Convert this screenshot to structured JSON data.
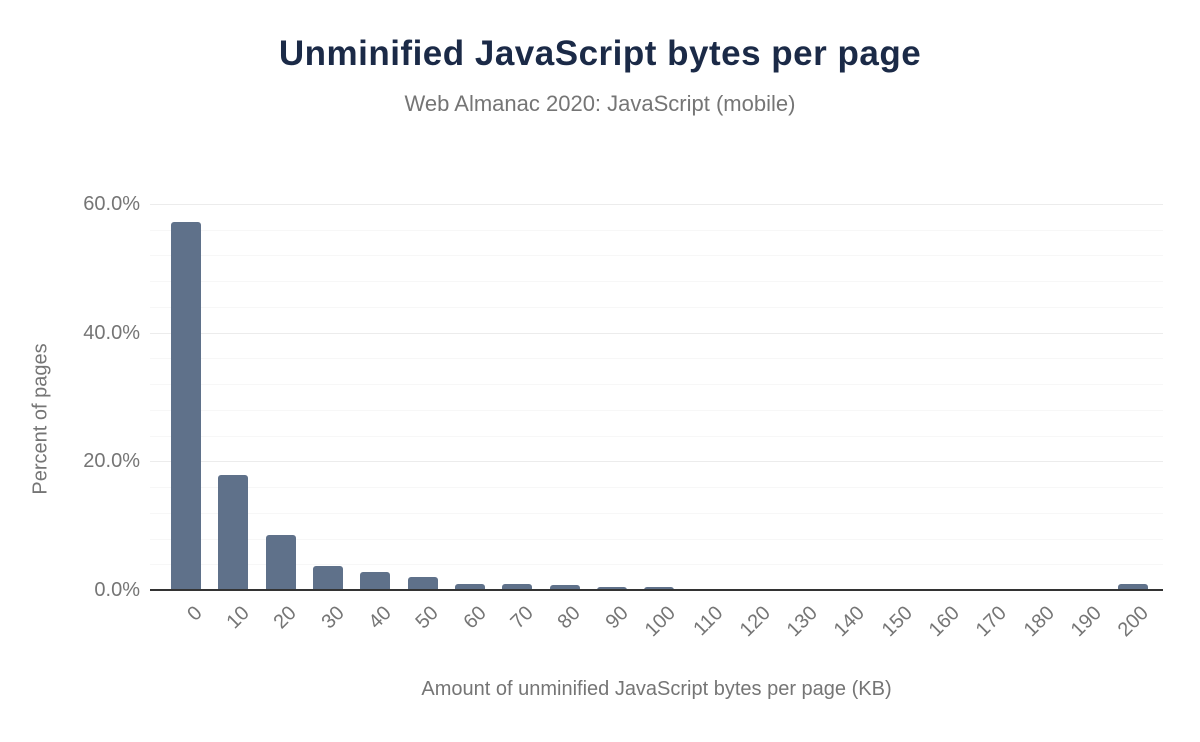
{
  "chart_data": {
    "type": "bar",
    "title": "Unminified JavaScript bytes per page",
    "subtitle": "Web Almanac 2020: JavaScript (mobile)",
    "xlabel": "Amount of unminified JavaScript bytes per page (KB)",
    "ylabel": "Percent of pages",
    "categories": [
      "0",
      "10",
      "20",
      "30",
      "40",
      "50",
      "60",
      "70",
      "80",
      "90",
      "100",
      "110",
      "120",
      "130",
      "140",
      "150",
      "160",
      "170",
      "180",
      "190",
      "200"
    ],
    "values": [
      57.2,
      17.8,
      8.5,
      3.8,
      2.8,
      2.0,
      1.0,
      1.0,
      0.8,
      0.5,
      0.5,
      0.2,
      0.2,
      0.2,
      0.15,
      0.15,
      0.15,
      0.15,
      0.15,
      0.1,
      0.9
    ],
    "ylim": [
      0,
      60
    ],
    "ytick_values": [
      0,
      20,
      40,
      60
    ],
    "ytick_labels": [
      "0.0%",
      "20.0%",
      "40.0%",
      "60.0%"
    ],
    "minor_grid_step": 4,
    "major_grid_step": 20,
    "grid": true,
    "legend": false,
    "colors": {
      "bar": "#5f718a",
      "title": "#1b2a47",
      "subtitle": "#757575",
      "axis_text": "#757575",
      "major_grid": "#ececec",
      "minor_grid": "#f7f7f7",
      "baseline": "#333333",
      "background": "#ffffff"
    }
  }
}
